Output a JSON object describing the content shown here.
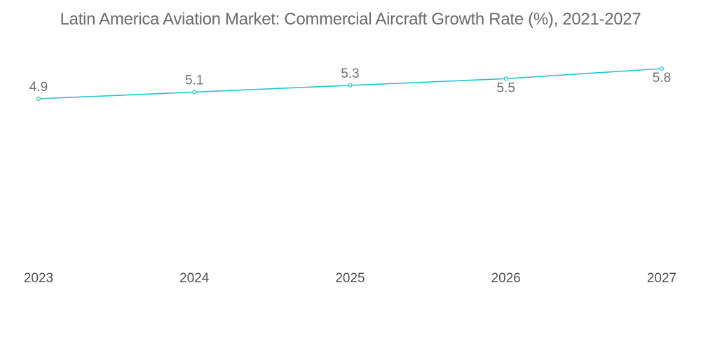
{
  "chart_data": {
    "type": "line",
    "title": "Latin America Aviation Market: Commercial Aircraft Growth Rate (%), 2021-2027",
    "xlabel": "",
    "ylabel": "",
    "categories": [
      "2023",
      "2024",
      "2025",
      "2026",
      "2027"
    ],
    "series": [
      {
        "name": "Growth Rate (%)",
        "values": [
          4.9,
          5.1,
          5.3,
          5.5,
          5.8
        ],
        "labels": [
          "4.9",
          "5.1",
          "5.3",
          "5.5",
          "5.8"
        ],
        "label_positions": [
          "above",
          "above",
          "above",
          "below",
          "below"
        ],
        "color": "#1fc8cc"
      }
    ],
    "ylim": [
      0,
      7.5
    ],
    "grid": false,
    "legend": "none"
  }
}
